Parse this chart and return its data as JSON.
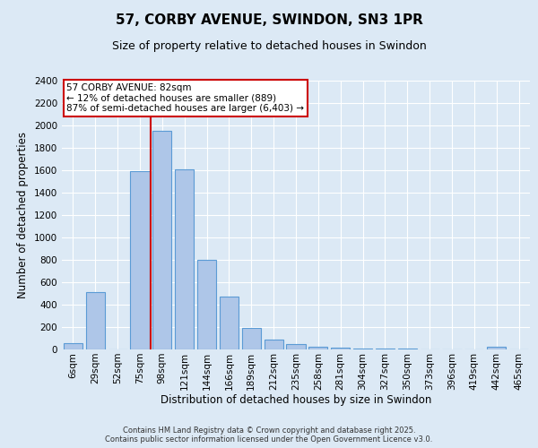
{
  "title": "57, CORBY AVENUE, SWINDON, SN3 1PR",
  "subtitle": "Size of property relative to detached houses in Swindon",
  "xlabel": "Distribution of detached houses by size in Swindon",
  "ylabel": "Number of detached properties",
  "categories": [
    "6sqm",
    "29sqm",
    "52sqm",
    "75sqm",
    "98sqm",
    "121sqm",
    "144sqm",
    "166sqm",
    "189sqm",
    "212sqm",
    "235sqm",
    "258sqm",
    "281sqm",
    "304sqm",
    "327sqm",
    "350sqm",
    "373sqm",
    "396sqm",
    "419sqm",
    "442sqm",
    "465sqm"
  ],
  "values": [
    55,
    510,
    0,
    1590,
    1950,
    1610,
    800,
    475,
    195,
    90,
    45,
    25,
    20,
    10,
    8,
    5,
    3,
    2,
    0,
    25,
    0
  ],
  "bar_color": "#aec6e8",
  "bar_edge_color": "#5b9bd5",
  "background_color": "#dce9f5",
  "grid_color": "#ffffff",
  "vline_x": 3.5,
  "vline_color": "#cc0000",
  "annotation_text": "57 CORBY AVENUE: 82sqm\n← 12% of detached houses are smaller (889)\n87% of semi-detached houses are larger (6,403) →",
  "annotation_box_color": "#ffffff",
  "annotation_box_edge": "#cc0000",
  "ylim": [
    0,
    2400
  ],
  "yticks": [
    0,
    200,
    400,
    600,
    800,
    1000,
    1200,
    1400,
    1600,
    1800,
    2000,
    2200,
    2400
  ],
  "footer": "Contains HM Land Registry data © Crown copyright and database right 2025.\nContains public sector information licensed under the Open Government Licence v3.0.",
  "title_fontsize": 11,
  "subtitle_fontsize": 9,
  "xlabel_fontsize": 8.5,
  "ylabel_fontsize": 8.5,
  "tick_fontsize": 7.5,
  "footer_fontsize": 6,
  "annotation_fontsize": 7.5
}
